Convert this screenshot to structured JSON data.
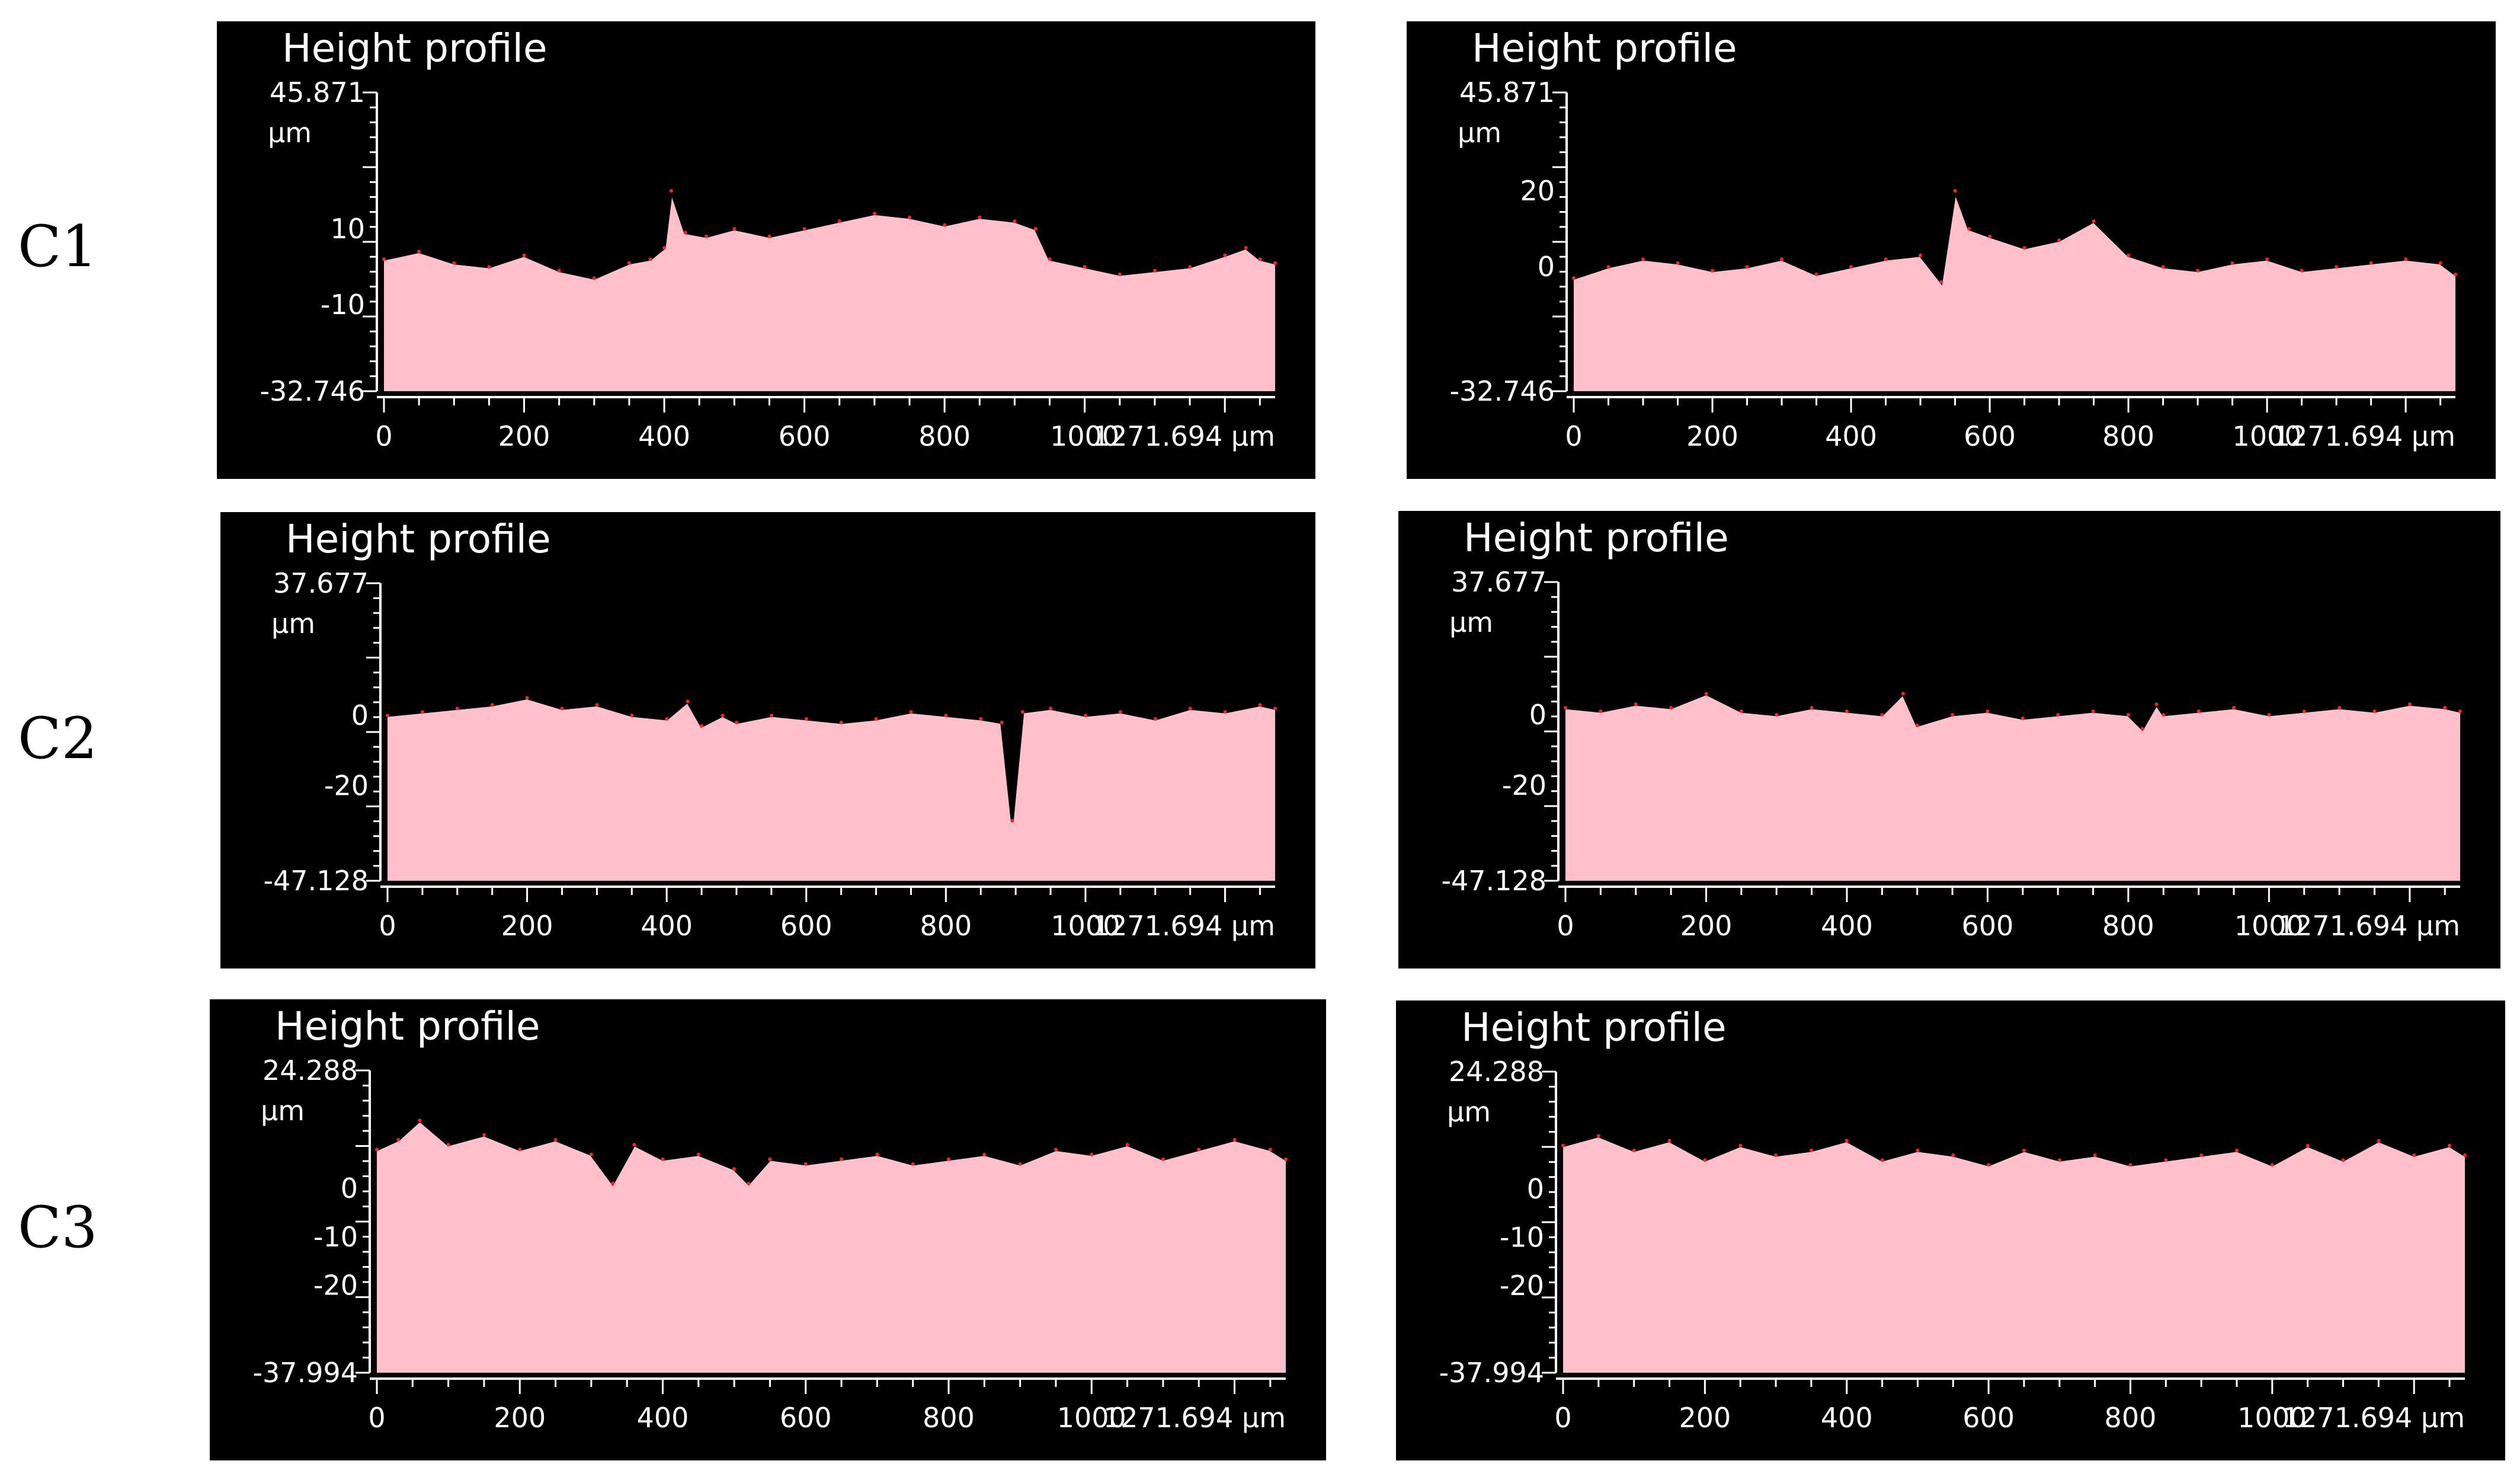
{
  "row_labels": [
    "C1",
    "C2",
    "C3"
  ],
  "colors": {
    "background": "#000000",
    "fill": "#ffc0cb",
    "profile_line": "#000000",
    "highlight": "#ff2020",
    "axis": "#ffffff"
  },
  "chart_data": [
    {
      "id": "c1-left",
      "row": "C1",
      "type": "area",
      "title": "Height profile",
      "ylim": [
        -32.746,
        45.871
      ],
      "y_unit": "µm",
      "y_ticks": [
        45.871,
        10,
        -10,
        -32.746
      ],
      "xlim": [
        0,
        1271.694
      ],
      "x_unit": "µm",
      "x_ticks": [
        0,
        200,
        400,
        600,
        800,
        1000,
        1271.694
      ],
      "x": [
        0,
        50,
        100,
        150,
        200,
        250,
        300,
        350,
        380,
        400,
        410,
        430,
        460,
        500,
        550,
        600,
        650,
        700,
        750,
        800,
        850,
        900,
        930,
        950,
        1000,
        1050,
        1100,
        1150,
        1200,
        1230,
        1250,
        1271.694
      ],
      "y": [
        2,
        4,
        1,
        0,
        3,
        -1,
        -3,
        1,
        2,
        5,
        20,
        9,
        8,
        10,
        8,
        10,
        12,
        14,
        13,
        11,
        13,
        12,
        10,
        2,
        0,
        -2,
        -1,
        0,
        3,
        5,
        2,
        1
      ]
    },
    {
      "id": "c1-right",
      "row": "C1",
      "type": "area",
      "title": "Height profile",
      "ylim": [
        -32.746,
        45.871
      ],
      "y_unit": "µm",
      "y_ticks": [
        45.871,
        20,
        0,
        -32.746
      ],
      "xlim": [
        0,
        1271.694
      ],
      "x_unit": "µm",
      "x_ticks": [
        0,
        200,
        400,
        600,
        800,
        1000,
        1271.694
      ],
      "x": [
        0,
        50,
        100,
        150,
        200,
        250,
        300,
        350,
        400,
        450,
        500,
        530,
        550,
        570,
        600,
        650,
        700,
        750,
        800,
        850,
        900,
        950,
        1000,
        1050,
        1100,
        1150,
        1200,
        1250,
        1271.694
      ],
      "y": [
        -3,
        0,
        2,
        1,
        -1,
        0,
        2,
        -2,
        0,
        2,
        3,
        -4,
        20,
        10,
        8,
        5,
        7,
        12,
        3,
        0,
        -1,
        1,
        2,
        -1,
        0,
        1,
        2,
        1,
        -2
      ]
    },
    {
      "id": "c2-left",
      "row": "C2",
      "type": "area",
      "title": "Height profile",
      "ylim": [
        -47.128,
        37.677
      ],
      "y_unit": "µm",
      "y_ticks": [
        37.677,
        0,
        -20,
        -47.128
      ],
      "xlim": [
        0,
        1271.694
      ],
      "x_unit": "µm",
      "x_ticks": [
        0,
        200,
        400,
        600,
        800,
        1000,
        1271.694
      ],
      "x": [
        0,
        50,
        100,
        150,
        200,
        250,
        300,
        350,
        400,
        430,
        450,
        480,
        500,
        550,
        600,
        650,
        700,
        750,
        800,
        850,
        880,
        895,
        910,
        950,
        1000,
        1050,
        1100,
        1150,
        1200,
        1250,
        1271.694
      ],
      "y": [
        0,
        1,
        2,
        3,
        5,
        2,
        3,
        0,
        -1,
        4,
        -3,
        0,
        -2,
        0,
        -1,
        -2,
        -1,
        1,
        0,
        -1,
        -2,
        -30,
        1,
        2,
        0,
        1,
        -1,
        2,
        1,
        3,
        2
      ]
    },
    {
      "id": "c2-right",
      "row": "C2",
      "type": "area",
      "title": "Height profile",
      "ylim": [
        -47.128,
        37.677
      ],
      "y_unit": "µm",
      "y_ticks": [
        37.677,
        0,
        -20,
        -47.128
      ],
      "xlim": [
        0,
        1271.694
      ],
      "x_unit": "µm",
      "x_ticks": [
        0,
        200,
        400,
        600,
        800,
        1000,
        1271.694
      ],
      "x": [
        0,
        50,
        100,
        150,
        200,
        250,
        300,
        350,
        400,
        450,
        480,
        500,
        550,
        600,
        650,
        700,
        750,
        800,
        820,
        840,
        850,
        900,
        950,
        1000,
        1050,
        1100,
        1150,
        1200,
        1250,
        1271.694
      ],
      "y": [
        2,
        1,
        3,
        2,
        6,
        1,
        0,
        2,
        1,
        0,
        6,
        -3,
        0,
        1,
        -1,
        0,
        1,
        0,
        -4,
        3,
        0,
        1,
        2,
        0,
        1,
        2,
        1,
        3,
        2,
        1
      ]
    },
    {
      "id": "c3-left",
      "row": "C3",
      "type": "area",
      "title": "Height profile",
      "ylim": [
        -37.994,
        24.288
      ],
      "y_unit": "µm",
      "y_ticks": [
        24.288,
        0,
        -10,
        -20,
        -37.994
      ],
      "xlim": [
        0,
        1271.694
      ],
      "x_unit": "µm",
      "x_ticks": [
        0,
        200,
        400,
        600,
        800,
        1000,
        1271.694
      ],
      "x": [
        0,
        30,
        60,
        100,
        150,
        200,
        250,
        300,
        330,
        360,
        400,
        450,
        500,
        520,
        550,
        600,
        650,
        700,
        750,
        800,
        850,
        900,
        950,
        1000,
        1050,
        1100,
        1150,
        1200,
        1250,
        1271.694
      ],
      "y": [
        8,
        10,
        14,
        9,
        11,
        8,
        10,
        7,
        1,
        9,
        6,
        7,
        4,
        1,
        6,
        5,
        6,
        7,
        5,
        6,
        7,
        5,
        8,
        7,
        9,
        6,
        8,
        10,
        8,
        6
      ]
    },
    {
      "id": "c3-right",
      "row": "C3",
      "type": "area",
      "title": "Height profile",
      "ylim": [
        -37.994,
        24.288
      ],
      "y_unit": "µm",
      "y_ticks": [
        24.288,
        0,
        -10,
        -20,
        -37.994
      ],
      "xlim": [
        0,
        1271.694
      ],
      "x_unit": "µm",
      "x_ticks": [
        0,
        200,
        400,
        600,
        800,
        1000,
        1271.694
      ],
      "x": [
        0,
        50,
        100,
        150,
        200,
        250,
        300,
        350,
        400,
        450,
        500,
        550,
        600,
        650,
        700,
        750,
        800,
        850,
        900,
        950,
        1000,
        1050,
        1100,
        1150,
        1200,
        1250,
        1271.694
      ],
      "y": [
        9,
        11,
        8,
        10,
        6,
        9,
        7,
        8,
        10,
        6,
        8,
        7,
        5,
        8,
        6,
        7,
        5,
        6,
        7,
        8,
        5,
        9,
        6,
        10,
        7,
        9,
        7
      ]
    }
  ]
}
